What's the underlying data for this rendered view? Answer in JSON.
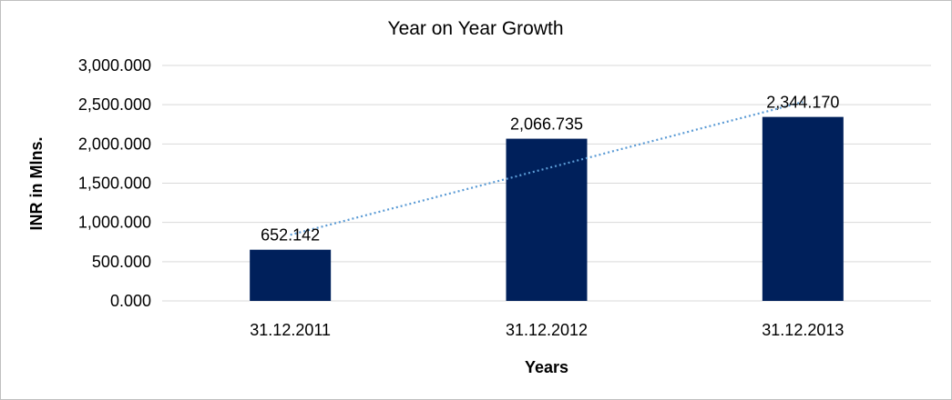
{
  "chart_data": {
    "type": "bar",
    "title": "Year on Year Growth",
    "xlabel": "Years",
    "ylabel": "INR in Mlns.",
    "categories": [
      "31.12.2011",
      "31.12.2012",
      "31.12.2013"
    ],
    "values": [
      652.142,
      2066.735,
      2344.17
    ],
    "data_labels": [
      "652.142",
      "2,066.735",
      "2,344.170"
    ],
    "yticks": [
      0,
      500,
      1000,
      1500,
      2000,
      2500,
      3000
    ],
    "ytick_labels": [
      "0.000",
      "500.000",
      "1,000.000",
      "1,500.000",
      "2,000.000",
      "2,500.000",
      "3,000.000"
    ],
    "ylim": [
      0,
      3000
    ],
    "grid": true,
    "legend": "none",
    "trendline": "linear",
    "colors": {
      "bar": "#00205b",
      "trendline": "#5b9bd5",
      "grid": "#d9d9d9",
      "border": "#bfbfbf"
    }
  }
}
